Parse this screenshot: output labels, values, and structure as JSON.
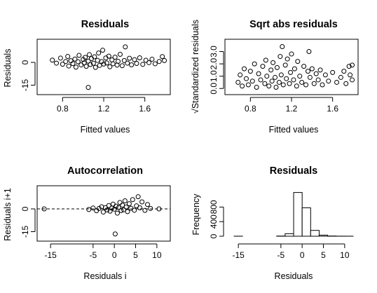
{
  "chart_data": [
    {
      "type": "scatter",
      "title": "Residuals",
      "xlabel": "Fitted values",
      "ylabel": "Residuals",
      "xlim": [
        0.6,
        1.8
      ],
      "ylim": [
        -18,
        12
      ],
      "xticks": [
        0.8,
        1.2,
        1.6
      ],
      "yticks": [
        -15,
        0
      ],
      "xtick_labels": [
        "0.8",
        "1.2",
        "1.6"
      ],
      "ytick_labels": [
        "-15",
        "0"
      ],
      "grid": false,
      "reference_line": null,
      "points": [
        [
          0.7,
          1.5
        ],
        [
          0.74,
          -0.5
        ],
        [
          0.78,
          2.8
        ],
        [
          0.8,
          -1.2
        ],
        [
          0.83,
          0.6
        ],
        [
          0.85,
          3.9
        ],
        [
          0.86,
          -2.4
        ],
        [
          0.88,
          1.1
        ],
        [
          0.9,
          -0.8
        ],
        [
          0.92,
          2.2
        ],
        [
          0.93,
          -3.1
        ],
        [
          0.95,
          0.4
        ],
        [
          0.96,
          4.6
        ],
        [
          0.98,
          -1.7
        ],
        [
          1.0,
          1.9
        ],
        [
          1.01,
          -0.3
        ],
        [
          1.02,
          3.3
        ],
        [
          1.03,
          -2.6
        ],
        [
          1.05,
          0.8
        ],
        [
          1.05,
          -16.5
        ],
        [
          1.06,
          5.1
        ],
        [
          1.07,
          -1.4
        ],
        [
          1.08,
          2.5
        ],
        [
          1.1,
          -0.6
        ],
        [
          1.11,
          3.7
        ],
        [
          1.12,
          -3.3
        ],
        [
          1.14,
          1.3
        ],
        [
          1.15,
          6.2
        ],
        [
          1.16,
          -2.0
        ],
        [
          1.18,
          0.5
        ],
        [
          1.19,
          8.0
        ],
        [
          1.2,
          -1.1
        ],
        [
          1.22,
          2.9
        ],
        [
          1.23,
          -0.4
        ],
        [
          1.25,
          4.1
        ],
        [
          1.26,
          -2.9
        ],
        [
          1.28,
          1.6
        ],
        [
          1.29,
          -0.9
        ],
        [
          1.31,
          3.4
        ],
        [
          1.33,
          -1.8
        ],
        [
          1.34,
          0.7
        ],
        [
          1.36,
          5.3
        ],
        [
          1.38,
          -2.2
        ],
        [
          1.4,
          1.2
        ],
        [
          1.41,
          10.2
        ],
        [
          1.43,
          -0.5
        ],
        [
          1.45,
          2.7
        ],
        [
          1.47,
          -1.6
        ],
        [
          1.5,
          1.8
        ],
        [
          1.52,
          -0.7
        ],
        [
          1.55,
          3.0
        ],
        [
          1.58,
          -1.3
        ],
        [
          1.61,
          1.4
        ],
        [
          1.64,
          -0.2
        ],
        [
          1.67,
          2.1
        ],
        [
          1.7,
          -0.9
        ],
        [
          1.74,
          0.6
        ],
        [
          1.77,
          3.8
        ],
        [
          1.79,
          1.2
        ]
      ]
    },
    {
      "type": "scatter",
      "title": "Sqrt abs residuals",
      "xlabel": "Fitted values",
      "ylabel": "√Standardized residuals",
      "xlim": [
        0.6,
        1.8
      ],
      "ylim": [
        -0.1,
        3.6
      ],
      "xticks": [
        0.8,
        1.2,
        1.6
      ],
      "yticks": [
        0.0,
        1.0,
        2.0,
        3.0
      ],
      "xtick_labels": [
        "0.8",
        "1.2",
        "1.6"
      ],
      "ytick_labels": [
        "0.0",
        "1.0",
        "2.0",
        "3.0"
      ],
      "grid": false,
      "reference_line": null,
      "points": [
        [
          0.68,
          0.5
        ],
        [
          0.7,
          1.1
        ],
        [
          0.72,
          0.2
        ],
        [
          0.74,
          1.6
        ],
        [
          0.76,
          0.8
        ],
        [
          0.78,
          0.3
        ],
        [
          0.8,
          1.4
        ],
        [
          0.82,
          0.6
        ],
        [
          0.84,
          2.0
        ],
        [
          0.86,
          0.1
        ],
        [
          0.88,
          1.2
        ],
        [
          0.9,
          0.7
        ],
        [
          0.92,
          1.8
        ],
        [
          0.94,
          0.4
        ],
        [
          0.95,
          2.3
        ],
        [
          0.96,
          1.0
        ],
        [
          0.98,
          0.2
        ],
        [
          1.0,
          1.5
        ],
        [
          1.01,
          0.6
        ],
        [
          1.02,
          2.1
        ],
        [
          1.04,
          0.9
        ],
        [
          1.05,
          0.1
        ],
        [
          1.06,
          1.7
        ],
        [
          1.08,
          0.5
        ],
        [
          1.09,
          2.6
        ],
        [
          1.1,
          1.1
        ],
        [
          1.11,
          3.4
        ],
        [
          1.12,
          0.3
        ],
        [
          1.14,
          1.9
        ],
        [
          1.15,
          0.8
        ],
        [
          1.16,
          2.4
        ],
        [
          1.18,
          0.4
        ],
        [
          1.19,
          1.3
        ],
        [
          1.2,
          2.8
        ],
        [
          1.22,
          0.7
        ],
        [
          1.23,
          1.6
        ],
        [
          1.25,
          0.2
        ],
        [
          1.26,
          2.2
        ],
        [
          1.28,
          1.0
        ],
        [
          1.3,
          0.5
        ],
        [
          1.32,
          1.8
        ],
        [
          1.34,
          0.3
        ],
        [
          1.36,
          1.4
        ],
        [
          1.37,
          3.0
        ],
        [
          1.38,
          0.9
        ],
        [
          1.4,
          1.6
        ],
        [
          1.42,
          0.4
        ],
        [
          1.44,
          1.2
        ],
        [
          1.46,
          0.7
        ],
        [
          1.48,
          1.5
        ],
        [
          1.5,
          0.3
        ],
        [
          1.53,
          1.1
        ],
        [
          1.56,
          0.6
        ],
        [
          1.6,
          1.3
        ],
        [
          1.64,
          0.5
        ],
        [
          1.68,
          0.9
        ],
        [
          1.71,
          1.4
        ],
        [
          1.73,
          0.4
        ],
        [
          1.76,
          1.8
        ],
        [
          1.77,
          1.1
        ],
        [
          1.79,
          0.7
        ],
        [
          1.79,
          1.9
        ]
      ]
    },
    {
      "type": "scatter",
      "title": "Autocorrelation",
      "xlabel": "Residuals i",
      "ylabel": "Residuals i+1",
      "xlim": [
        -17,
        12
      ],
      "ylim": [
        -18,
        12
      ],
      "xticks": [
        -15,
        -5,
        0,
        5,
        10
      ],
      "yticks": [
        -15,
        0
      ],
      "xtick_labels": [
        "-15",
        "-5",
        "0",
        "5",
        "10"
      ],
      "ytick_labels": [
        "-15",
        "0"
      ],
      "grid": false,
      "reference_line": {
        "y": 0,
        "style": "dashed"
      },
      "points": [
        [
          -16.5,
          0.0
        ],
        [
          -6.0,
          -0.4
        ],
        [
          -5.0,
          0.6
        ],
        [
          -4.2,
          -1.2
        ],
        [
          -3.6,
          0.3
        ],
        [
          -3.0,
          1.4
        ],
        [
          -2.6,
          -2.1
        ],
        [
          -2.1,
          0.8
        ],
        [
          -1.7,
          -0.7
        ],
        [
          -1.3,
          2.2
        ],
        [
          -1.0,
          -1.5
        ],
        [
          -0.6,
          0.5
        ],
        [
          -0.3,
          3.1
        ],
        [
          0.0,
          -0.2
        ],
        [
          0.2,
          -16.5
        ],
        [
          0.4,
          1.8
        ],
        [
          0.7,
          -2.8
        ],
        [
          1.0,
          0.9
        ],
        [
          1.3,
          4.2
        ],
        [
          1.6,
          -1.1
        ],
        [
          1.9,
          2.5
        ],
        [
          2.2,
          -0.6
        ],
        [
          2.5,
          5.3
        ],
        [
          2.8,
          1.2
        ],
        [
          3.1,
          -1.8
        ],
        [
          3.5,
          3.4
        ],
        [
          3.9,
          0.4
        ],
        [
          4.3,
          6.1
        ],
        [
          4.7,
          -0.9
        ],
        [
          5.2,
          2.0
        ],
        [
          5.6,
          8.0
        ],
        [
          6.0,
          0.7
        ],
        [
          6.5,
          4.6
        ],
        [
          7.2,
          -1.0
        ],
        [
          7.8,
          2.9
        ],
        [
          8.5,
          0.3
        ],
        [
          10.5,
          0.0
        ]
      ]
    },
    {
      "type": "bar",
      "title": "Residuals",
      "xlabel": "Residuals",
      "ylabel": "Frequency",
      "xlim": [
        -17,
        12
      ],
      "ylim": [
        0,
        1250
      ],
      "xticks": [
        -15,
        -5,
        0,
        5,
        10
      ],
      "yticks": [
        0,
        400,
        800
      ],
      "xtick_labels": [
        "-15",
        "-5",
        "0",
        "5",
        "10"
      ],
      "ytick_labels": [
        "0",
        "400",
        "800"
      ],
      "grid": false,
      "bin_edges": [
        -16,
        -14,
        -12,
        -10,
        -8,
        -6,
        -4,
        -2,
        0,
        2,
        4,
        6,
        8,
        10,
        12
      ],
      "values": [
        1,
        0,
        0,
        0,
        0,
        5,
        70,
        1200,
        780,
        160,
        30,
        6,
        2,
        1
      ]
    }
  ]
}
